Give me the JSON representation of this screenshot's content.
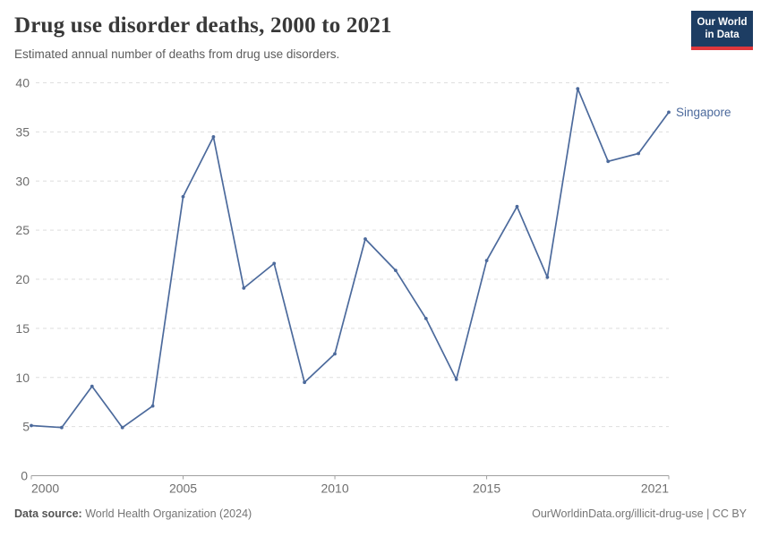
{
  "header": {
    "title": "Drug use disorder deaths, 2000 to 2021",
    "subtitle": "Estimated annual number of deaths from drug use disorders.",
    "logo": {
      "line1": "Our World",
      "line2": "in Data"
    }
  },
  "chart_data": {
    "type": "line",
    "title": "Drug use disorder deaths, 2000 to 2021",
    "xlabel": "",
    "ylabel": "",
    "x": [
      2000,
      2001,
      2002,
      2003,
      2004,
      2005,
      2006,
      2007,
      2008,
      2009,
      2010,
      2011,
      2012,
      2013,
      2014,
      2015,
      2016,
      2017,
      2018,
      2019,
      2020,
      2021
    ],
    "series": [
      {
        "name": "Singapore",
        "values": [
          5.1,
          4.9,
          9.1,
          4.9,
          7.1,
          28.4,
          34.5,
          19.1,
          21.6,
          9.5,
          12.4,
          24.1,
          20.9,
          16,
          9.8,
          21.9,
          27.4,
          20.2,
          39.4,
          32,
          32.8,
          37
        ]
      }
    ],
    "xlim": [
      2000,
      2021
    ],
    "ylim": [
      0,
      40
    ],
    "yticks": [
      0,
      5,
      10,
      15,
      20,
      25,
      30,
      35,
      40
    ],
    "xticks": [
      2000,
      2005,
      2010,
      2015,
      2021
    ],
    "grid": "horizontal-dashed",
    "legend_position": "end-of-line",
    "line_color": "#4C6A9C",
    "marker": "dot"
  },
  "colors": {
    "accent_line": "#4C6A9C",
    "gridline": "#dedede",
    "axis_line": "#a0a0a0",
    "tick_text": "#6e6e6e",
    "logo_bg": "#1d3d63",
    "logo_strip": "#e0373c"
  },
  "footer": {
    "source_label": "Data source:",
    "source_text": " World Health Organization (2024)",
    "link_text": "OurWorldinData.org/illicit-drug-use | CC BY"
  }
}
